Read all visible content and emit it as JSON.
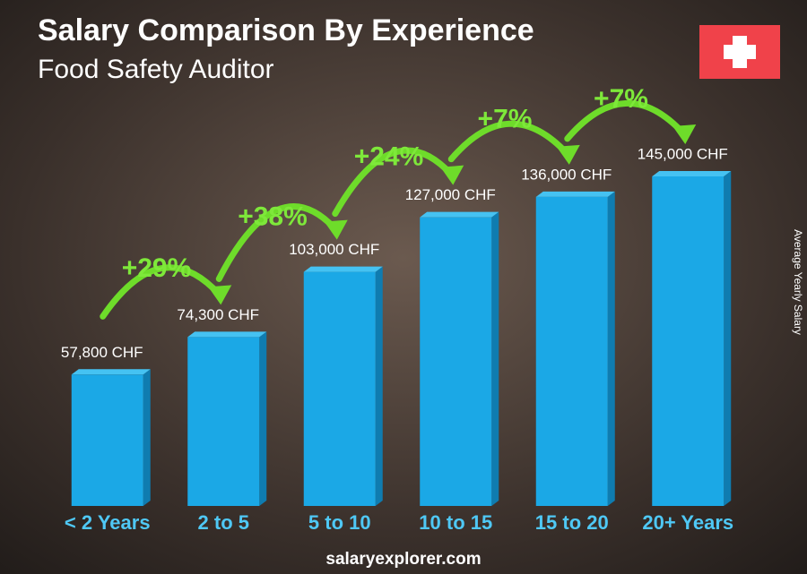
{
  "chart_data": {
    "type": "bar",
    "title": "Salary Comparison By Experience",
    "subtitle": "Food Safety Auditor",
    "y_axis_label": "Average Yearly Salary",
    "categories": [
      "< 2 Years",
      "2 to 5",
      "5 to 10",
      "10 to 15",
      "15 to 20",
      "20+ Years"
    ],
    "values": [
      57800,
      74300,
      103000,
      127000,
      136000,
      145000
    ],
    "value_labels": [
      "57,800 CHF",
      "74,300 CHF",
      "103,000 CHF",
      "127,000 CHF",
      "136,000 CHF",
      "145,000 CHF"
    ],
    "changes": [
      "+29%",
      "+38%",
      "+24%",
      "+7%",
      "+7%"
    ],
    "color": "#1ba8e6",
    "footer": "salaryexplorer.com"
  }
}
